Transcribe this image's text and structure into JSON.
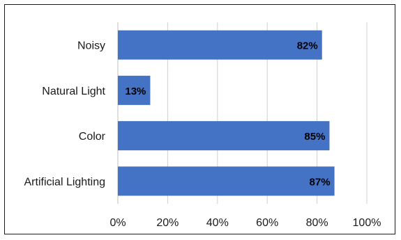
{
  "chart_data": {
    "type": "bar",
    "orientation": "horizontal",
    "categories": [
      "Noisy",
      "Natural Light",
      "Color",
      "Artificial Lighting"
    ],
    "values": [
      82,
      13,
      85,
      87
    ],
    "data_labels": [
      "82%",
      "13%",
      "85%",
      "87%"
    ],
    "xlim": [
      0,
      100
    ],
    "x_ticks": [
      0,
      20,
      40,
      60,
      80,
      100
    ],
    "x_tick_labels": [
      "0%",
      "20%",
      "40%",
      "60%",
      "80%",
      "100%"
    ],
    "grid": true,
    "legend": "none",
    "bar_color": "#4472C4"
  }
}
